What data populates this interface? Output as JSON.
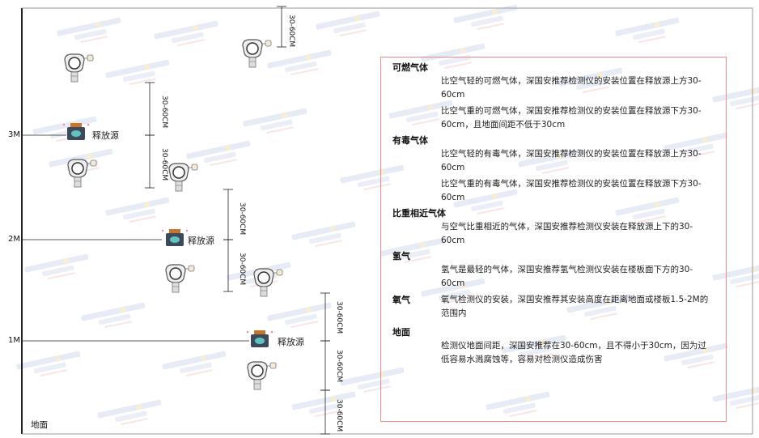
{
  "levels": [
    "3M",
    "2M",
    "1M"
  ],
  "ground_label": "地面",
  "source_label": "释放源",
  "dimension_label": "30-60CM",
  "watermark": "SINGOAN 深国安",
  "colors": {
    "panel_border": "#f08a8a",
    "line": "#222222",
    "source_body": "#3c4a5c",
    "source_cap": "#c5762e"
  },
  "panel": {
    "sections": [
      {
        "title": "可燃气体",
        "paragraphs": [
          "比空气轻的可燃气体，深国安推荐检测仪的安装位置在释放源上方30-60cm",
          "比空气重的可燃气体，深国安推荐检测仪的安装位置在释放源下方30-60cm，且地面间距不低于30cm"
        ]
      },
      {
        "title": "有毒气体",
        "paragraphs": [
          "比空气轻的有毒气体，深国安推荐检测仪的安装位置在释放源上方30-60cm",
          "比空气重的有毒气体，深国安推荐检测仪的安装位置在释放源下方30-60cm"
        ]
      },
      {
        "title": "比重相近气体",
        "paragraphs": [
          "与空气比重相近的气体，深国安推荐检测仪安装在释放源上下的30-60cm"
        ]
      },
      {
        "title": "氢气",
        "paragraphs": [
          "氢气是最轻的气体，深国安推荐氢气检测仪安装在楼板面下方的30-60cm"
        ]
      },
      {
        "title": "氧气",
        "paragraphs": [
          "氧气检测仪的安装，深国安推荐其安装高度在距离地面或楼板1.5-2M的范围内"
        ]
      },
      {
        "title": "地面",
        "paragraphs": [
          "检测仪地面间距，深国安推荐在30-60cm，且不得小于30cm，因为过低容易水溅腐蚀等，容易对检测仪造成伤害"
        ]
      }
    ]
  }
}
